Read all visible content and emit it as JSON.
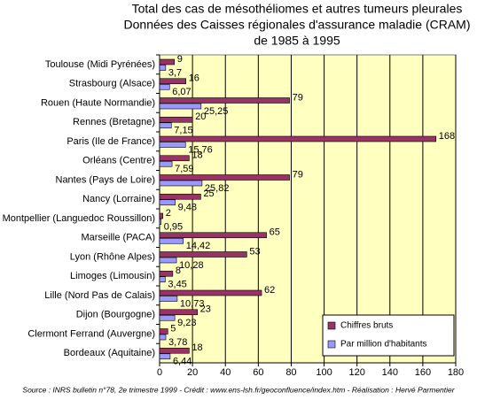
{
  "chart_data": {
    "type": "barh",
    "title": [
      "Total des cas de mésothéliomes et autres tumeurs pleurales",
      "Données des Caisses régionales d'assurance maladie (CRAM)",
      "de 1985 à 1995"
    ],
    "categories": [
      "Toulouse (Midi Pyrénées)",
      "Strasbourg (Alsace)",
      "Rouen (Haute Normandie)",
      "Rennes (Bretagne)",
      "Paris (Ile de France)",
      "Orléans (Centre)",
      "Nantes (Pays de Loire)",
      "Nancy (Lorraine)",
      "Montpellier (Languedoc Roussillon)",
      "Marseille (PACA)",
      "Lyon (Rhône Alpes)",
      "Limoges (Limousin)",
      "Lille (Nord Pas de Calais)",
      "Dijon (Bourgogne)",
      "Clermont Ferrand (Auvergne)",
      "Bordeaux (Aquitaine)"
    ],
    "series": [
      {
        "name": "Chiffres bruts",
        "color": "#993366",
        "values": [
          9,
          16,
          79,
          20,
          168,
          18,
          79,
          25,
          2,
          65,
          53,
          8,
          62,
          23,
          5,
          18
        ]
      },
      {
        "name": "Par million d'habitants",
        "color": "#9999ff",
        "values": [
          3.7,
          6.07,
          25.25,
          7.15,
          15.76,
          7.59,
          25.82,
          9.48,
          0.95,
          14.42,
          10.28,
          3.45,
          10.73,
          9.23,
          3.78,
          6.44
        ],
        "value_labels": [
          "3,7",
          "6,07",
          "25,25",
          "7,15",
          "15,76",
          "7,59",
          "25,82",
          "9,48",
          "0,95",
          "14,42",
          "10,28",
          "3,45",
          "10,73",
          "9,23",
          "3,78",
          "6,44"
        ]
      }
    ],
    "xlim": [
      0,
      180
    ],
    "xticks": [
      0,
      20,
      40,
      60,
      80,
      100,
      120,
      140,
      160,
      180
    ],
    "grid": true,
    "legend": "lower right",
    "background": "#ffffc0",
    "source": "Source : INRS bulletin n°78, 2e trimestre 1999 - Crédit : www.ens-lsh.fr/geoconfluence/index.htm - Réalisation : Hervé Parmentier"
  }
}
